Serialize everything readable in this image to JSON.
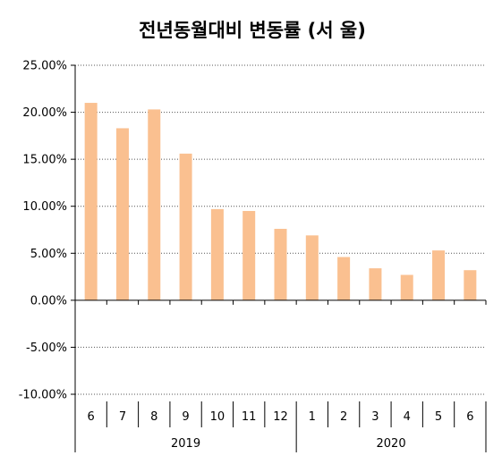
{
  "chart_data": {
    "type": "bar",
    "title": "전년동월대비 변동률 (서   울)",
    "categories": [
      "6",
      "7",
      "8",
      "9",
      "10",
      "11",
      "12",
      "1",
      "2",
      "3",
      "4",
      "5",
      "6"
    ],
    "groups": [
      {
        "label": "2019",
        "count": 7
      },
      {
        "label": "2020",
        "count": 6
      }
    ],
    "series": [
      {
        "values": [
          21.0,
          18.3,
          20.3,
          15.6,
          9.7,
          9.5,
          7.6,
          6.9,
          4.6,
          3.4,
          2.7,
          5.3,
          3.2
        ]
      }
    ],
    "yticks": [
      "-10.00%",
      "-5.00%",
      "0.00%",
      "5.00%",
      "10.00%",
      "15.00%",
      "20.00%",
      "25.00%"
    ],
    "ylim": [
      -10,
      25
    ],
    "xlabel": "",
    "ylabel": "",
    "grid": true,
    "bar_color": "#FAC090"
  }
}
